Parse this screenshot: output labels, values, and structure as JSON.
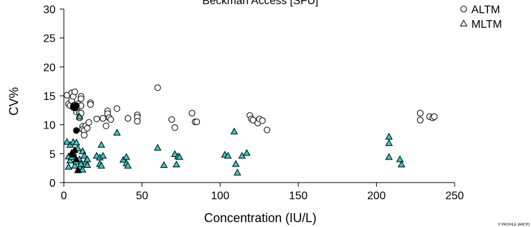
{
  "chart_data": {
    "type": "scatter",
    "title": "Beckman Access [SFU]",
    "xlabel": "Concentration (IU/L)",
    "ylabel": "CV%",
    "xlim": [
      0,
      262
    ],
    "ylim": [
      0,
      30
    ],
    "x_ticks": [
      0,
      50,
      100,
      150,
      200,
      250
    ],
    "y_ticks": [
      0,
      5,
      10,
      15,
      20,
      25,
      30
    ],
    "grid": false,
    "legend_position": "top-right",
    "watermark": "P PROFILE (ARCH)",
    "series": [
      {
        "name": "ALTM",
        "marker": "circle",
        "fill": "#ffffff",
        "stroke": "#000000",
        "points": [
          [
            2,
            15.1
          ],
          [
            3,
            13.6
          ],
          [
            4,
            13.3
          ],
          [
            5,
            14.2
          ],
          [
            5,
            15.5
          ],
          [
            6,
            13.0
          ],
          [
            6,
            14.9
          ],
          [
            7,
            15.7
          ],
          [
            7,
            13.4
          ],
          [
            8,
            12.9
          ],
          [
            8,
            12.2
          ],
          [
            9,
            13.6
          ],
          [
            10,
            12.1
          ],
          [
            10,
            11.2
          ],
          [
            11,
            14.9
          ],
          [
            11,
            14.5
          ],
          [
            11,
            13.3
          ],
          [
            11,
            12.0
          ],
          [
            12,
            9.7
          ],
          [
            12,
            9.2
          ],
          [
            13,
            9.0
          ],
          [
            13,
            8.2
          ],
          [
            14,
            9.8
          ],
          [
            15,
            9.4
          ],
          [
            16,
            10.4
          ],
          [
            17,
            13.8
          ],
          [
            17,
            13.5
          ],
          [
            21,
            11.0
          ],
          [
            25,
            11.1
          ],
          [
            27,
            9.8
          ],
          [
            28,
            12.4
          ],
          [
            28,
            11.9
          ],
          [
            29,
            11.2
          ],
          [
            30,
            10.9
          ],
          [
            34,
            12.8
          ],
          [
            41,
            11.1
          ],
          [
            47,
            11.7
          ],
          [
            47,
            11.3
          ],
          [
            47,
            10.6
          ],
          [
            60,
            16.4
          ],
          [
            69,
            10.9
          ],
          [
            71,
            9.5
          ],
          [
            82,
            12.0
          ],
          [
            84,
            10.5
          ],
          [
            85,
            10.5
          ],
          [
            119,
            11.6
          ],
          [
            120,
            11.0
          ],
          [
            121,
            10.8
          ],
          [
            124,
            10.3
          ],
          [
            125,
            11.0
          ],
          [
            127,
            10.7
          ],
          [
            130,
            9.1
          ],
          [
            228,
            12.0
          ],
          [
            228,
            10.8
          ],
          [
            234,
            11.4
          ],
          [
            236,
            11.2
          ],
          [
            237,
            11.4
          ]
        ]
      },
      {
        "name": "MLTM",
        "marker": "triangle",
        "fill": "#33cccc",
        "stroke": "#000000",
        "points": [
          [
            2,
            7.0
          ],
          [
            3,
            4.5
          ],
          [
            3,
            2.7
          ],
          [
            4,
            6.5
          ],
          [
            4,
            3.8
          ],
          [
            5,
            4.4
          ],
          [
            6,
            7.0
          ],
          [
            6,
            5.2
          ],
          [
            7,
            2.9
          ],
          [
            8,
            6.9
          ],
          [
            8,
            3.6
          ],
          [
            9,
            5.9
          ],
          [
            10,
            11.4
          ],
          [
            10,
            4.0
          ],
          [
            10,
            2.7
          ],
          [
            11,
            3.2
          ],
          [
            12,
            5.4
          ],
          [
            12,
            2.2
          ],
          [
            13,
            4.6
          ],
          [
            14,
            3.6
          ],
          [
            15,
            4.0
          ],
          [
            15,
            3.0
          ],
          [
            21,
            4.6
          ],
          [
            23,
            4.3
          ],
          [
            23,
            3.2
          ],
          [
            24,
            6.5
          ],
          [
            24,
            2.9
          ],
          [
            25,
            4.6
          ],
          [
            34,
            8.6
          ],
          [
            38,
            3.9
          ],
          [
            40,
            4.4
          ],
          [
            40,
            3.3
          ],
          [
            41,
            2.9
          ],
          [
            60,
            6.0
          ],
          [
            64,
            3.0
          ],
          [
            71,
            4.9
          ],
          [
            72,
            3.1
          ],
          [
            73,
            4.5
          ],
          [
            74,
            4.4
          ],
          [
            103,
            4.8
          ],
          [
            105,
            4.6
          ],
          [
            109,
            8.8
          ],
          [
            110,
            3.2
          ],
          [
            111,
            1.7
          ],
          [
            114,
            4.6
          ],
          [
            117,
            5.1
          ],
          [
            208,
            7.9
          ],
          [
            208,
            6.8
          ],
          [
            208,
            4.4
          ],
          [
            215,
            4.0
          ],
          [
            216,
            3.1
          ]
        ]
      },
      {
        "name": "",
        "marker": "circle",
        "fill": "#000000",
        "stroke": "#000000",
        "points": [
          [
            6,
            13.2
          ],
          [
            7,
            12.9
          ],
          [
            8,
            9.0
          ],
          [
            8,
            13.3
          ]
        ]
      },
      {
        "name": "",
        "marker": "triangle",
        "fill": "#000000",
        "stroke": "#000000",
        "points": [
          [
            5,
            5.1
          ],
          [
            6,
            4.8
          ],
          [
            7,
            5.6
          ],
          [
            8,
            4.0
          ],
          [
            9,
            2.1
          ]
        ]
      }
    ]
  }
}
